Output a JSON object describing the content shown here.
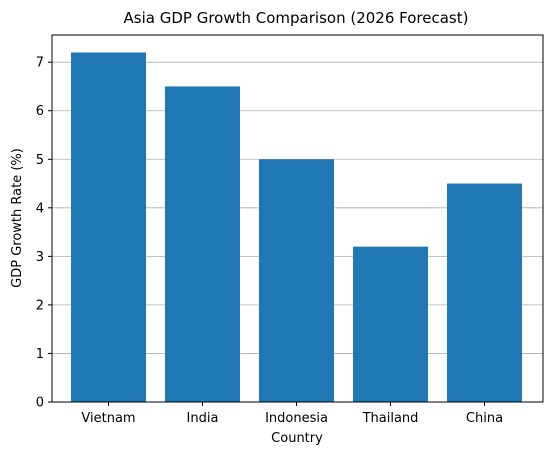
{
  "chart_data": {
    "type": "bar",
    "title": "Asia GDP Growth Comparison (2026 Forecast)",
    "xlabel": "Country",
    "ylabel": "GDP Growth Rate (%)",
    "categories": [
      "Vietnam",
      "India",
      "Indonesia",
      "Thailand",
      "China"
    ],
    "values": [
      7.2,
      6.5,
      5.0,
      3.2,
      4.5
    ],
    "ylim": [
      0,
      7.56
    ],
    "yticks": [
      "0",
      "1",
      "2",
      "3",
      "4",
      "5",
      "6",
      "7"
    ],
    "grid": "y-axis",
    "legend": "none",
    "bar_color": "#1f77b4",
    "grid_color": "#b0b0b0"
  }
}
